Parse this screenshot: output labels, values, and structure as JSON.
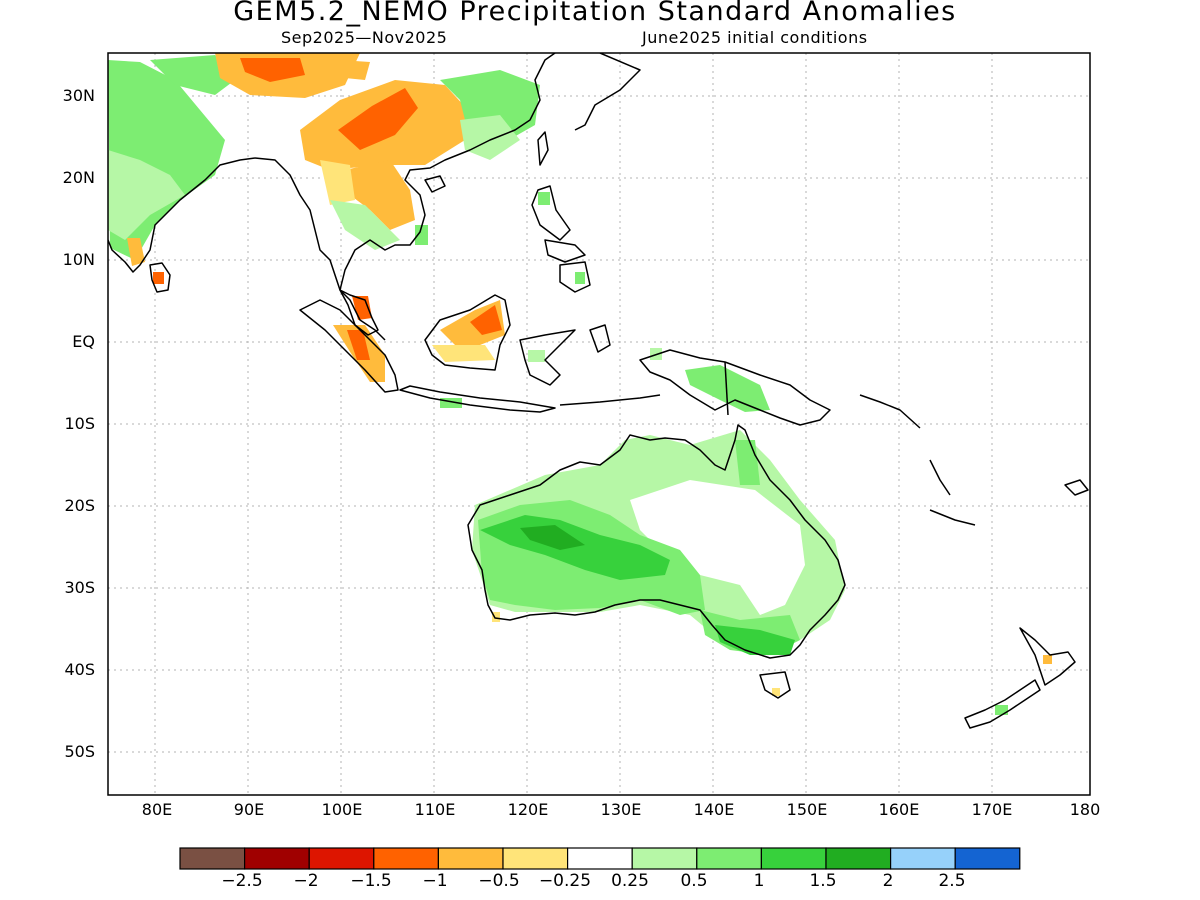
{
  "title": "GEM5.2_NEMO Precipitation Standard Anomalies",
  "subtitle_left": "Sep2025—Nov2025",
  "subtitle_right": "June2025 initial conditions",
  "lat_labels": [
    "30N",
    "20N",
    "10N",
    "EQ",
    "10S",
    "20S",
    "30S",
    "40S",
    "50S"
  ],
  "lon_labels": [
    "80E",
    "90E",
    "100E",
    "110E",
    "120E",
    "130E",
    "140E",
    "150E",
    "160E",
    "170E",
    "180"
  ],
  "colorbar": {
    "colors": [
      "#7a5043",
      "#a00000",
      "#dd1500",
      "#ff6200",
      "#ffbb3c",
      "#ffe479",
      "#ffffff",
      "#b6f7a6",
      "#7ded72",
      "#37d13c",
      "#21ad21",
      "#96d1fa",
      "#1464d2"
    ],
    "ticks": [
      "−2.5",
      "−2",
      "−1.5",
      "−1",
      "−0.5",
      "−0.25",
      "0.25",
      "0.5",
      "1",
      "1.5",
      "2",
      "2.5"
    ]
  }
}
